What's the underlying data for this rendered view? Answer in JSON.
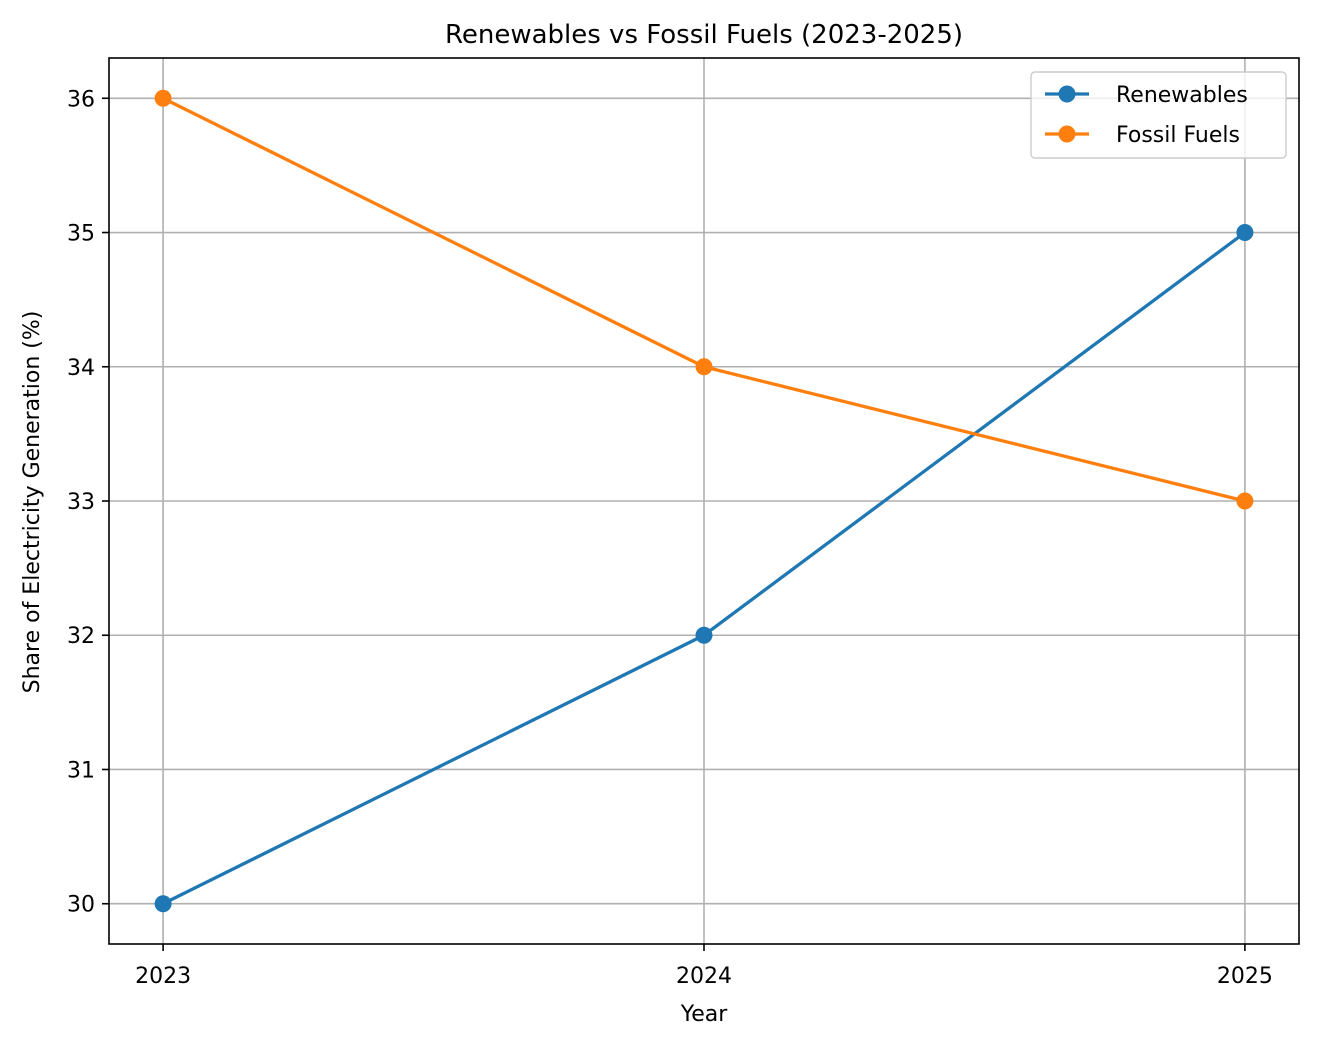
{
  "chart_data": {
    "type": "line",
    "title": "Renewables vs Fossil Fuels (2023-2025)",
    "xlabel": "Year",
    "ylabel": "Share of Electricity Generation (%)",
    "x": [
      2023,
      2024,
      2025
    ],
    "x_tick_labels": [
      "2023",
      "2024",
      "2025"
    ],
    "xlim": [
      2022.9,
      2025.1
    ],
    "ylim": [
      29.7,
      36.3
    ],
    "y_ticks": [
      30,
      31,
      32,
      33,
      34,
      35,
      36
    ],
    "grid": true,
    "legend_position": "upper right",
    "series": [
      {
        "name": "Renewables",
        "values": [
          30,
          32,
          35
        ],
        "color": "#1f77b4",
        "marker": "circle"
      },
      {
        "name": "Fossil Fuels",
        "values": [
          36,
          34,
          33
        ],
        "color": "#ff7f0e",
        "marker": "circle"
      }
    ]
  }
}
